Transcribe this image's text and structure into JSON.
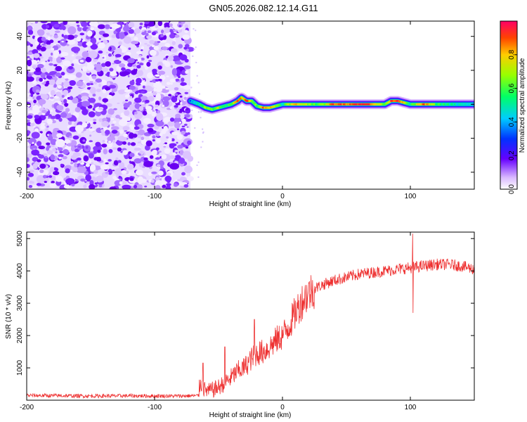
{
  "title": "GN05.2026.082.12.14.G11",
  "chart_data": [
    {
      "type": "heatmap",
      "xlabel": "Height of straight line (km)",
      "ylabel": "Frequency (Hz)",
      "xlim": [
        -200,
        150
      ],
      "ylim": [
        -50,
        49
      ],
      "xticks": [
        -200,
        -100,
        0,
        100
      ],
      "yticks": [
        -40,
        -20,
        0,
        20,
        40
      ],
      "colorbar": {
        "label": "Normalized spectral amplitude",
        "range": [
          0,
          1
        ],
        "ticks": [
          "0.0",
          "0.2",
          "0.4",
          "0.6",
          "0.8"
        ],
        "tick_values": [
          0.0,
          0.2,
          0.4,
          0.6,
          0.8
        ]
      },
      "noise_region_x": [
        -200,
        -72
      ],
      "signal_track": {
        "x": [
          -72,
          -65,
          -60,
          -55,
          -50,
          -45,
          -40,
          -35,
          -32,
          -28,
          -24,
          -20,
          -15,
          -10,
          -5,
          0,
          5,
          10,
          20,
          30,
          40,
          50,
          60,
          70,
          80,
          85,
          90,
          95,
          100,
          110,
          120,
          130,
          140,
          150
        ],
        "freq": [
          2,
          0,
          -2,
          -3,
          -2,
          -1,
          0,
          2,
          4,
          2,
          2,
          -1,
          -2,
          -2,
          -1,
          0,
          0,
          0,
          0,
          0,
          0,
          0,
          0,
          0,
          0,
          2,
          2,
          1,
          0,
          0,
          0,
          0,
          0,
          0
        ],
        "amplitude": [
          0.3,
          0.5,
          0.7,
          0.6,
          0.7,
          0.5,
          0.6,
          0.9,
          0.8,
          0.9,
          0.7,
          0.6,
          0.9,
          0.8,
          0.7,
          0.5,
          0.7,
          0.8,
          0.7,
          0.6,
          0.9,
          0.9,
          0.95,
          0.9,
          0.6,
          0.9,
          0.95,
          0.8,
          0.5,
          0.9,
          0.6,
          0.5,
          0.45,
          0.4
        ]
      }
    },
    {
      "type": "line",
      "xlabel": "Height of straight line (km)",
      "ylabel": "SNR (10 * v/v)",
      "xlim": [
        -200,
        150
      ],
      "ylim": [
        0,
        5200
      ],
      "xticks": [
        -200,
        -100,
        0,
        100
      ],
      "yticks": [
        1000,
        2000,
        3000,
        4000,
        5000
      ],
      "color": "#ee3030",
      "envelope": {
        "x": [
          -200,
          -180,
          -150,
          -120,
          -100,
          -80,
          -66,
          -64,
          -62,
          -58,
          -54,
          -50,
          -45,
          -40,
          -35,
          -30,
          -25,
          -20,
          -15,
          -10,
          -5,
          0,
          5,
          10,
          15,
          20,
          25,
          30,
          40,
          50,
          60,
          70,
          80,
          90,
          100,
          110,
          120,
          130,
          140,
          150
        ],
        "y": [
          150,
          140,
          130,
          135,
          130,
          130,
          140,
          600,
          350,
          280,
          330,
          400,
          550,
          700,
          900,
          1000,
          1250,
          1450,
          1500,
          1650,
          1850,
          2000,
          2300,
          2700,
          3050,
          3300,
          3450,
          3550,
          3700,
          3800,
          3900,
          3950,
          4000,
          4050,
          4100,
          4150,
          4200,
          4200,
          4150,
          4050
        ]
      },
      "spikes": [
        {
          "x": -62,
          "y": 1150
        },
        {
          "x": -45,
          "y": 1650
        },
        {
          "x": -22,
          "y": 2500
        },
        {
          "x": 102,
          "y": 5150
        },
        {
          "x": 102,
          "y": 2700
        }
      ]
    }
  ]
}
